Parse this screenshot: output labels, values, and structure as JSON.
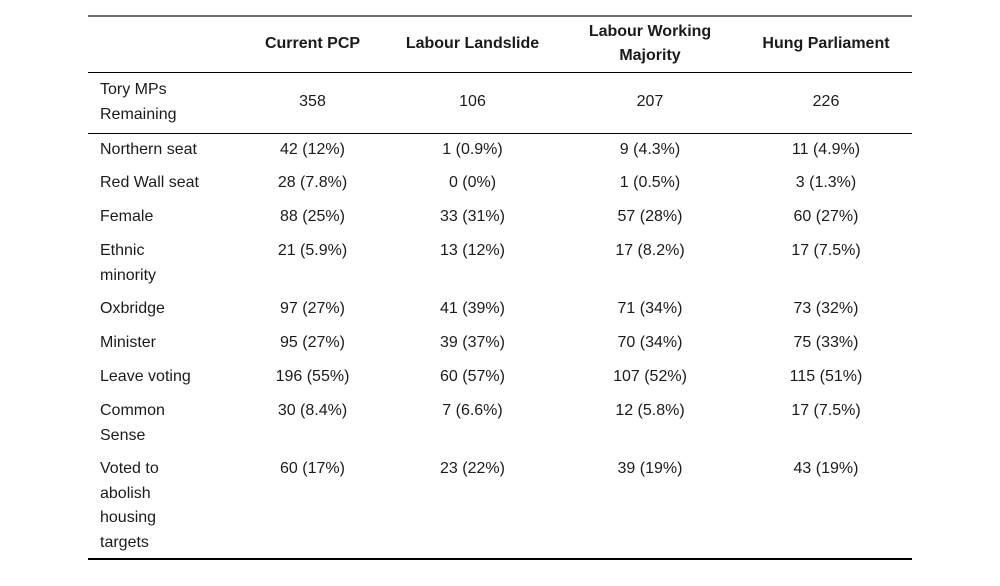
{
  "colors": {
    "background": "#ffffff",
    "text": "#1b1b1b",
    "rule_top": "#6e6e6e",
    "rule": "#000000"
  },
  "chart_data": {
    "type": "table",
    "columns": [
      "",
      "Current PCP",
      "Labour Landslide",
      "Labour Working\nMajority",
      "Hung Parliament"
    ],
    "rows": [
      {
        "label": "Tory MPs\nRemaining",
        "values": [
          "358",
          "106",
          "207",
          "226"
        ]
      },
      {
        "label": "Northern seat",
        "values": [
          "42 (12%)",
          "1 (0.9%)",
          "9 (4.3%)",
          "11 (4.9%)"
        ]
      },
      {
        "label": "Red Wall seat",
        "values": [
          "28 (7.8%)",
          "0 (0%)",
          "1 (0.5%)",
          "3 (1.3%)"
        ]
      },
      {
        "label": "Female",
        "values": [
          "88 (25%)",
          "33 (31%)",
          "57 (28%)",
          "60 (27%)"
        ]
      },
      {
        "label": "Ethnic\nminority",
        "values": [
          "21 (5.9%)",
          "13 (12%)",
          "17 (8.2%)",
          "17 (7.5%)"
        ]
      },
      {
        "label": "Oxbridge",
        "values": [
          "97 (27%)",
          "41 (39%)",
          "71 (34%)",
          "73 (32%)"
        ]
      },
      {
        "label": "Minister",
        "values": [
          "95 (27%)",
          "39 (37%)",
          "70 (34%)",
          "75 (33%)"
        ]
      },
      {
        "label": "Leave voting",
        "values": [
          "196 (55%)",
          "60 (57%)",
          "107 (52%)",
          "115 (51%)"
        ]
      },
      {
        "label": "Common\nSense",
        "values": [
          "30 (8.4%)",
          "7 (6.6%)",
          "12 (5.8%)",
          "17 (7.5%)"
        ]
      },
      {
        "label": "Voted to\nabolish\nhousing\ntargets",
        "values": [
          "60 (17%)",
          "23 (22%)",
          "39 (19%)",
          "43 (19%)"
        ]
      }
    ]
  }
}
